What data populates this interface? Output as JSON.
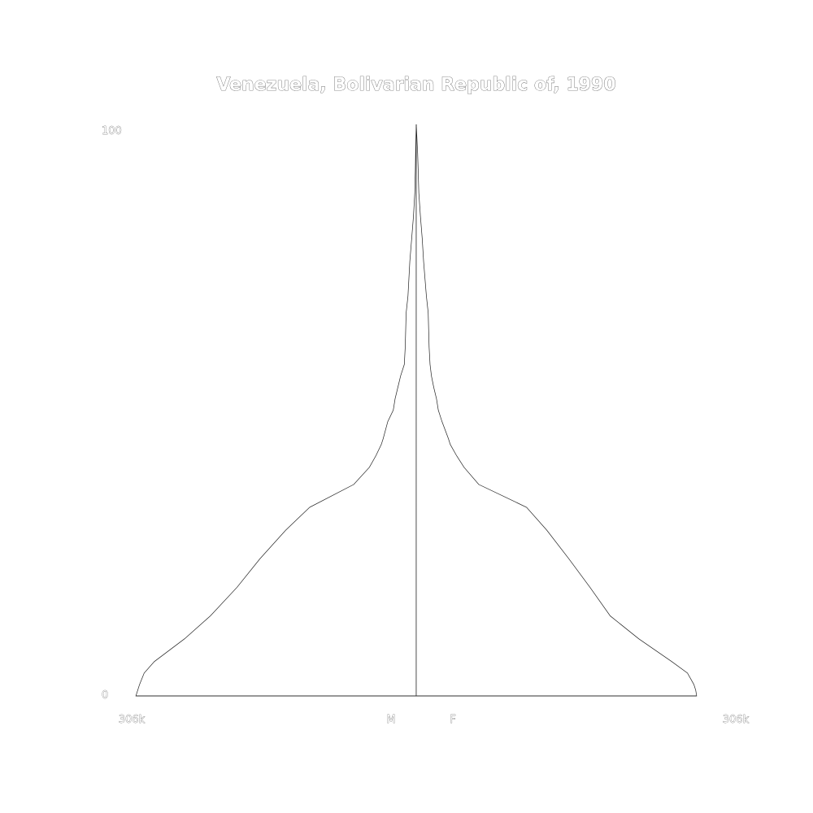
{
  "chart_data": {
    "type": "area",
    "subtype": "population-pyramid",
    "title": "Venezuela, Bolivarian Republic of, 1990",
    "y_tick_labels": {
      "min": "0",
      "max": "100"
    },
    "ylim": [
      0,
      100
    ],
    "xlim": [
      0,
      306000
    ],
    "x_tick_labels": {
      "left": "306k",
      "right": "306k"
    },
    "side_labels": {
      "male": "M",
      "female": "F"
    },
    "ages": [
      0,
      1,
      2,
      4,
      6,
      10,
      14,
      19,
      24,
      29,
      33,
      37,
      40,
      42,
      44,
      45,
      48,
      50,
      52,
      54,
      56,
      58,
      61,
      64,
      67,
      70,
      73,
      76,
      80,
      84,
      88,
      92,
      95,
      98,
      100
    ],
    "male_values": [
      305000,
      303000,
      301000,
      296000,
      285000,
      252000,
      224000,
      195000,
      170000,
      142000,
      116000,
      68000,
      51000,
      44000,
      38000,
      36000,
      31000,
      25000,
      23000,
      20000,
      17000,
      13000,
      12000,
      11500,
      11000,
      9000,
      8000,
      7000,
      5000,
      3000,
      1600,
      1000,
      700,
      300,
      0
    ],
    "female_values": [
      305000,
      304000,
      302000,
      295000,
      278000,
      242000,
      211000,
      189000,
      166000,
      142000,
      120000,
      68000,
      52000,
      44000,
      37000,
      35000,
      28000,
      24000,
      22000,
      19000,
      16500,
      15000,
      14000,
      13500,
      13000,
      11000,
      9500,
      8000,
      6500,
      4500,
      2800,
      2100,
      1500,
      600,
      0
    ]
  }
}
